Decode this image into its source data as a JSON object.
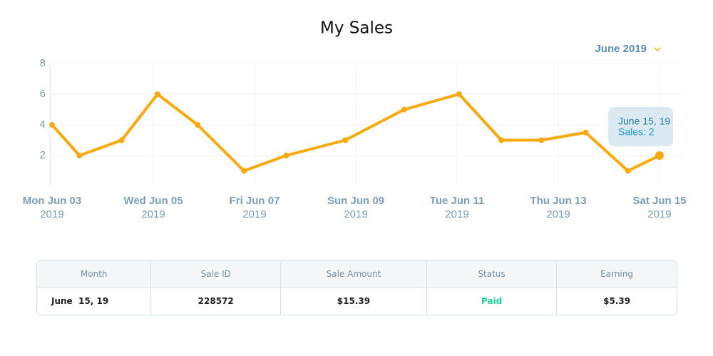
{
  "chart_data": {
    "type": "line",
    "title": "My Sales",
    "dropdown": "June 2019",
    "x": [
      "2019-06-03T00:00",
      "2019-06-03T13:00",
      "2019-06-04T09:00",
      "2019-06-05T02:00",
      "2019-06-05T21:00",
      "2019-06-06T19:00",
      "2019-06-07T15:00",
      "2019-06-08T19:00",
      "2019-06-09T23:00",
      "2019-06-11T01:00",
      "2019-06-11T21:00",
      "2019-06-12T16:00",
      "2019-06-13T13:00",
      "2019-06-14T09:00",
      "2019-06-15T00:00"
    ],
    "series": [
      {
        "name": "Sales",
        "color": "#f8aa0c",
        "values": [
          4,
          2,
          3,
          6,
          4,
          1,
          2,
          3,
          5,
          6,
          3,
          3,
          3.5,
          1,
          2
        ]
      }
    ],
    "xlim": [
      "2019-06-03T00:00",
      "2019-06-15T00:00"
    ],
    "xticks": [
      {
        "value": "2019-06-03T00:00",
        "label": [
          "Mon Jun 03",
          "2019"
        ]
      },
      {
        "value": "2019-06-05T00:00",
        "label": [
          "Wed Jun 05",
          "2019"
        ]
      },
      {
        "value": "2019-06-07T00:00",
        "label": [
          "Fri Jun 07",
          "2019"
        ]
      },
      {
        "value": "2019-06-09T00:00",
        "label": [
          "Sun Jun 09",
          "2019"
        ]
      },
      {
        "value": "2019-06-11T00:00",
        "label": [
          "Tue Jun 11",
          "2019"
        ]
      },
      {
        "value": "2019-06-13T00:00",
        "label": [
          "Thu Jun 13",
          "2019"
        ]
      },
      {
        "value": "2019-06-15T00:00",
        "label": [
          "Sat Jun 15",
          "2019"
        ]
      }
    ],
    "ylim": [
      0,
      8
    ],
    "yticks": [
      2,
      4,
      6,
      8
    ],
    "grid": true,
    "tooltip": {
      "title": "June 15, 19",
      "text": "Sales: 2",
      "index": 14
    }
  },
  "table": {
    "headers": [
      "Month",
      "Sale ID",
      "Sale Amount",
      "Status",
      "Earning"
    ],
    "rows": [
      [
        "June  15, 19",
        "228572",
        "$15.39",
        "Paid",
        "$5.39"
      ]
    ]
  }
}
